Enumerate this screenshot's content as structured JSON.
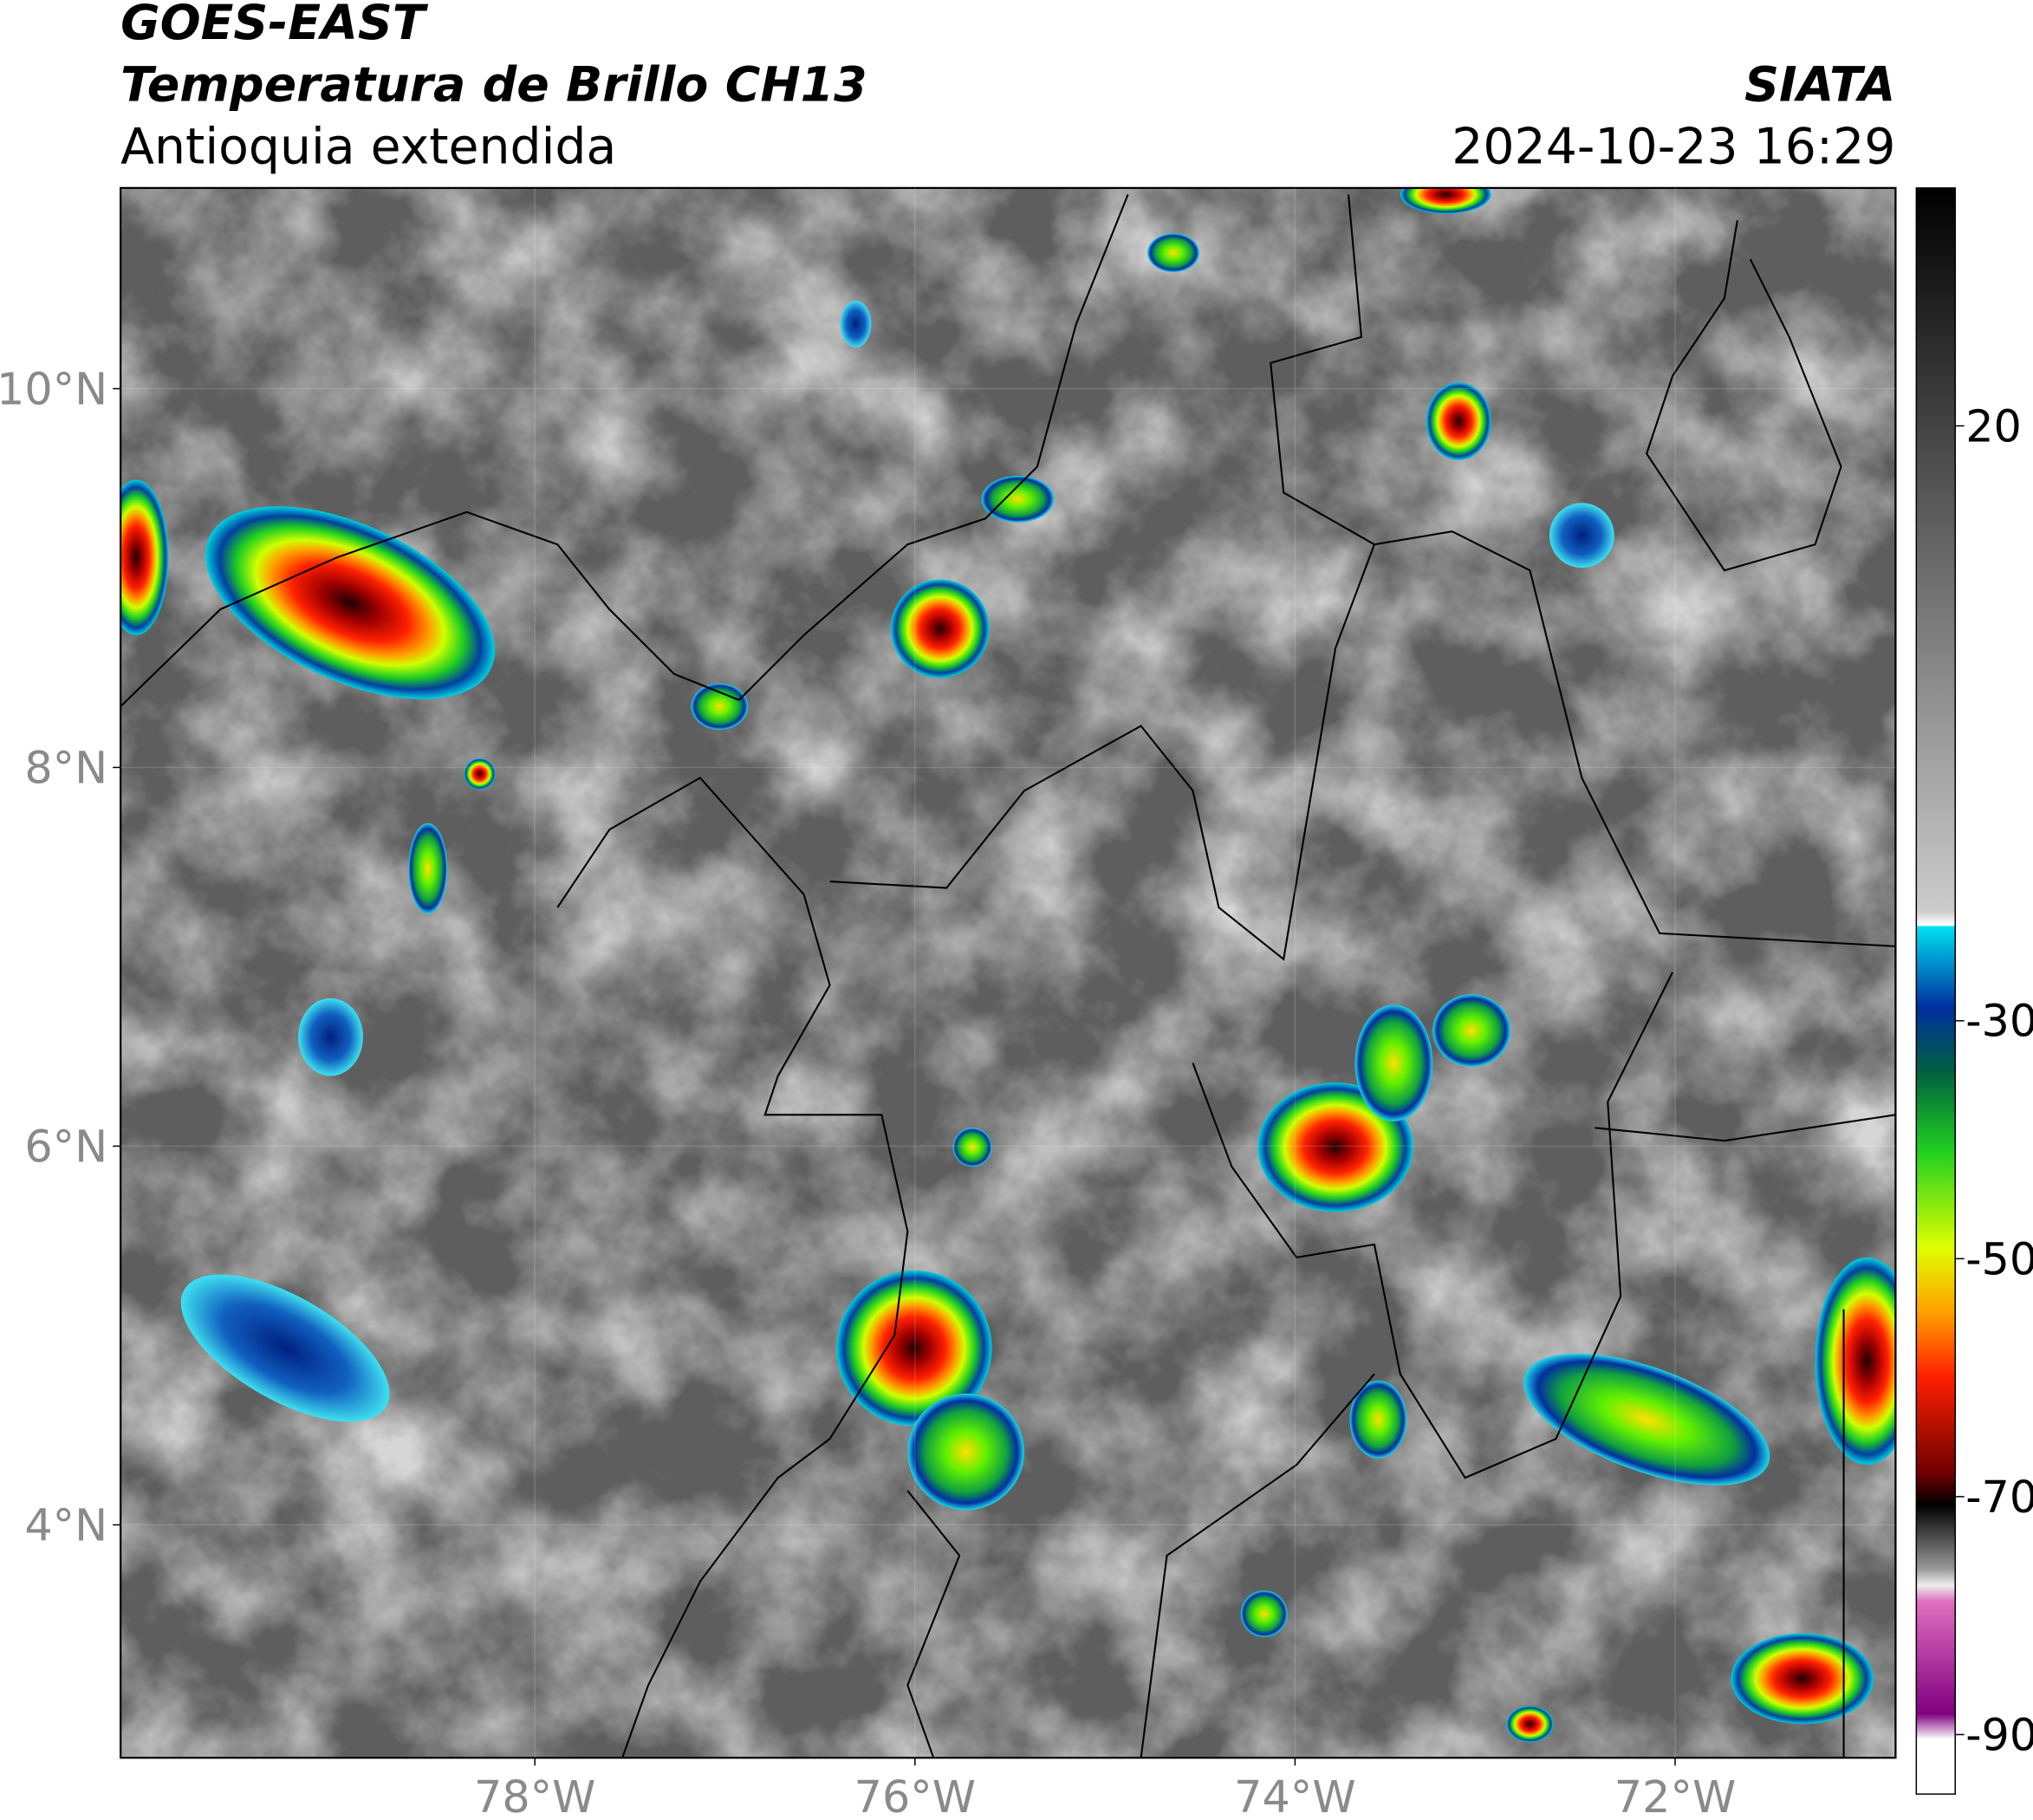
{
  "header": {
    "satellite": "GOES-EAST",
    "product": "Temperatura de Brillo CH13",
    "region": "Antioquia extendida",
    "agency": "SIATA",
    "datetime": "2024-10-23 16:29"
  },
  "map": {
    "xlim": [
      -80.18,
      -70.84
    ],
    "ylim": [
      2.77,
      11.06
    ],
    "xticks": [
      {
        "value": -78,
        "label": "78°W"
      },
      {
        "value": -76,
        "label": "76°W"
      },
      {
        "value": -74,
        "label": "74°W"
      },
      {
        "value": -72,
        "label": "72°W"
      }
    ],
    "yticks": [
      {
        "value": 10,
        "label": "10°N"
      },
      {
        "value": 8,
        "label": "8°N"
      },
      {
        "value": 6,
        "label": "6°N"
      },
      {
        "value": 4,
        "label": "4°N"
      }
    ]
  },
  "colorbar": {
    "lim": [
      -95,
      40
    ],
    "ticks": [
      20,
      -30,
      -50,
      -70,
      -90
    ]
  }
}
